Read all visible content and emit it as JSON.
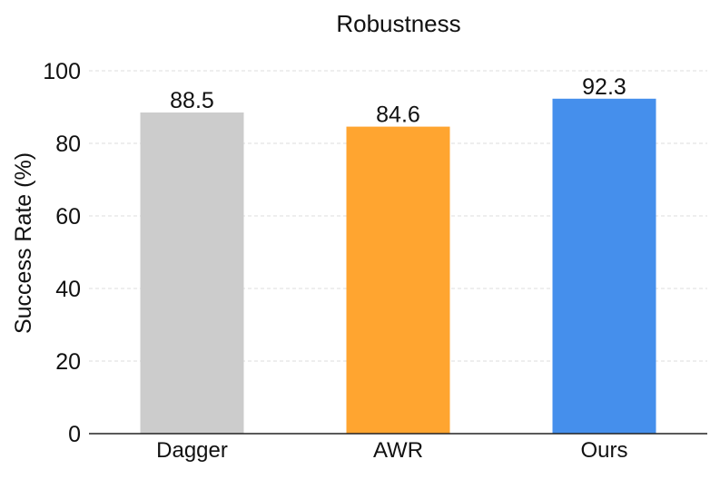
{
  "chart_data": {
    "type": "bar",
    "title": "Robustness",
    "xlabel": "",
    "ylabel": "Success Rate (%)",
    "categories": [
      "Dagger",
      "AWR",
      "Ours"
    ],
    "values": [
      88.5,
      84.6,
      92.3
    ],
    "value_labels": [
      "88.5",
      "84.6",
      "92.3"
    ],
    "colors": [
      "#cccccc",
      "#ffa530",
      "#458fec"
    ],
    "ylim": [
      0,
      100
    ],
    "yticks": [
      0,
      20,
      40,
      60,
      80,
      100
    ],
    "ytick_labels": [
      "0",
      "20",
      "40",
      "60",
      "80",
      "100"
    ],
    "grid": "horizontal dashed",
    "legend": "none"
  }
}
